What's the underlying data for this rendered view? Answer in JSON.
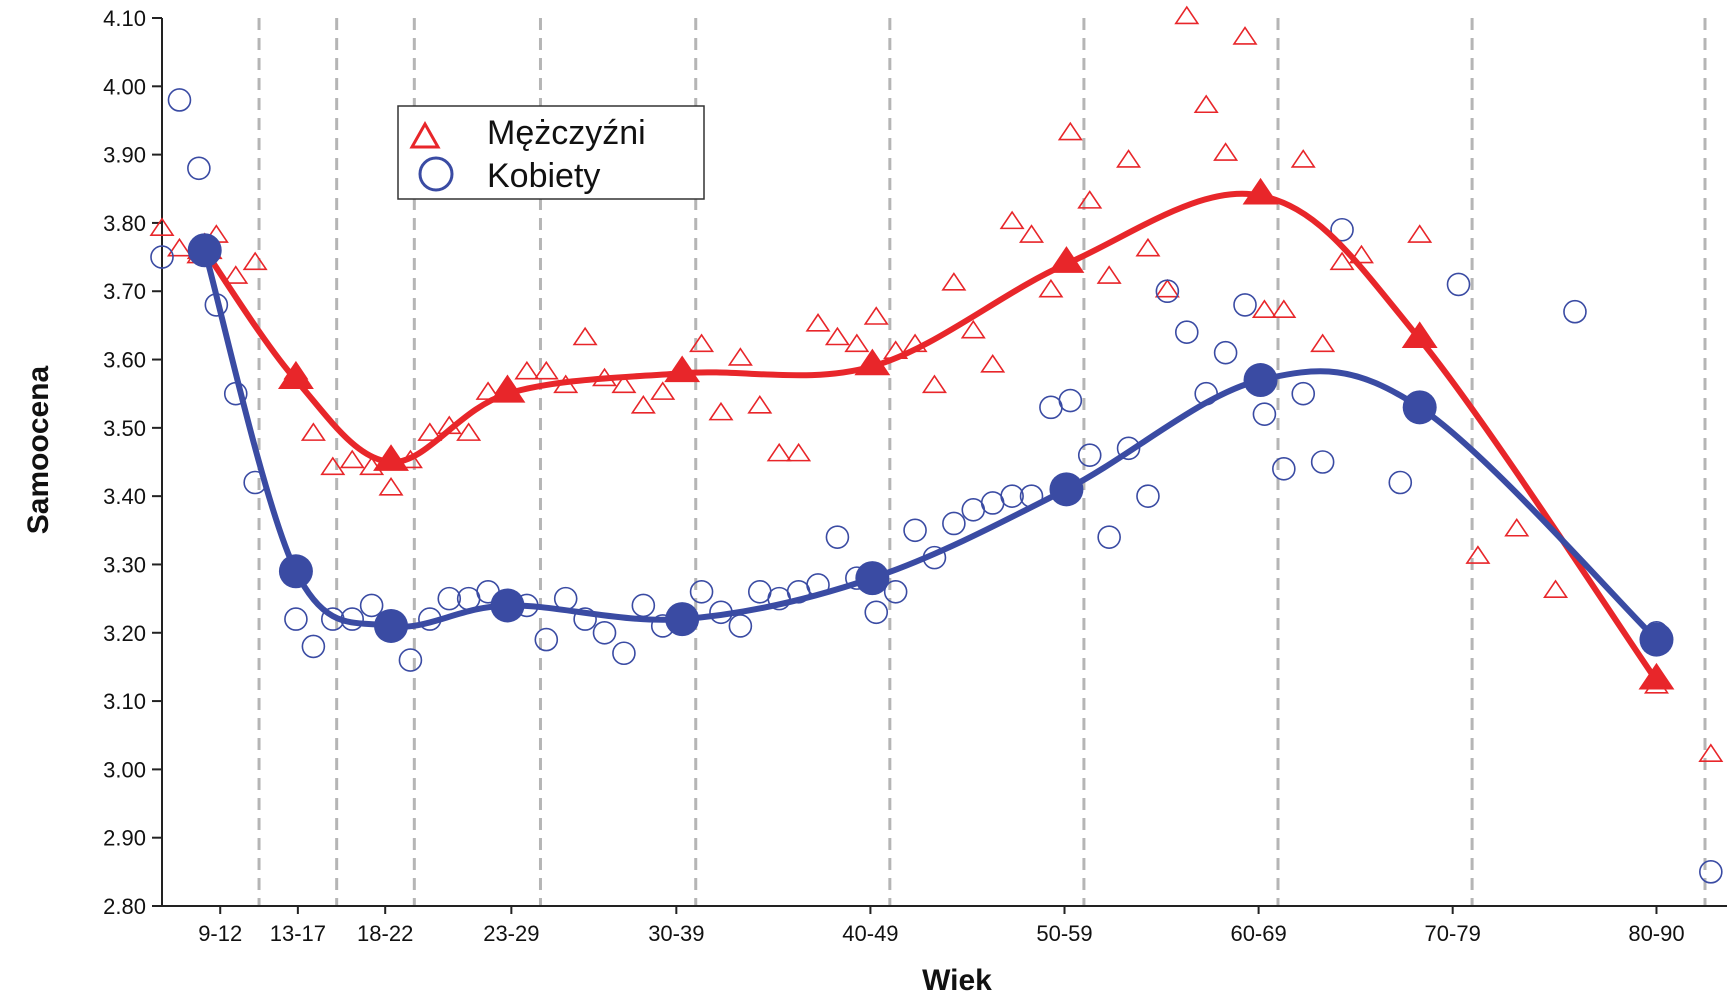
{
  "chart_data": {
    "type": "scatter",
    "xlabel": "Wiek",
    "ylabel": "Samoocena",
    "ylim": [
      2.8,
      4.1
    ],
    "yticks": [
      "2.80",
      "2.90",
      "3.00",
      "3.10",
      "3.20",
      "3.30",
      "3.40",
      "3.50",
      "3.60",
      "3.70",
      "3.80",
      "3.90",
      "4.00",
      "4.10"
    ],
    "grid": "vertical dashed separators between age groups",
    "legend_position": "top-left",
    "categories": [
      "9-12",
      "13-17",
      "18-22",
      "23-29",
      "30-39",
      "40-49",
      "50-59",
      "60-69",
      "70-79",
      "80-90"
    ],
    "category_positions": [
      11,
      15,
      19.5,
      26,
      34.5,
      44.5,
      54.5,
      64.5,
      74.5,
      85
    ],
    "separators": [
      13,
      17,
      21,
      27.5,
      35.5,
      45.5,
      55.5,
      65.5,
      75.5,
      87.5
    ],
    "x_domain": [
      8,
      87.5
    ],
    "series": [
      {
        "name": "Mężczyźni",
        "marker": "triangle",
        "color": "#e8262a",
        "points": [
          [
            8.0,
            3.79
          ],
          [
            8.9,
            3.76
          ],
          [
            9.9,
            3.75
          ],
          [
            10.8,
            3.78
          ],
          [
            11.8,
            3.72
          ],
          [
            12.8,
            3.74
          ],
          [
            14.9,
            3.58
          ],
          [
            15.8,
            3.49
          ],
          [
            16.8,
            3.44
          ],
          [
            17.8,
            3.45
          ],
          [
            18.8,
            3.44
          ],
          [
            19.8,
            3.41
          ],
          [
            20.8,
            3.45
          ],
          [
            21.8,
            3.49
          ],
          [
            22.8,
            3.5
          ],
          [
            23.8,
            3.49
          ],
          [
            24.8,
            3.55
          ],
          [
            25.8,
            3.56
          ],
          [
            26.8,
            3.58
          ],
          [
            27.8,
            3.58
          ],
          [
            28.8,
            3.56
          ],
          [
            29.8,
            3.63
          ],
          [
            30.8,
            3.57
          ],
          [
            31.8,
            3.56
          ],
          [
            32.8,
            3.53
          ],
          [
            33.8,
            3.55
          ],
          [
            35.8,
            3.62
          ],
          [
            36.8,
            3.52
          ],
          [
            37.8,
            3.6
          ],
          [
            38.8,
            3.53
          ],
          [
            39.8,
            3.46
          ],
          [
            40.8,
            3.46
          ],
          [
            41.8,
            3.65
          ],
          [
            42.8,
            3.63
          ],
          [
            43.8,
            3.62
          ],
          [
            44.8,
            3.66
          ],
          [
            45.8,
            3.61
          ],
          [
            46.8,
            3.62
          ],
          [
            47.8,
            3.56
          ],
          [
            48.8,
            3.71
          ],
          [
            49.8,
            3.64
          ],
          [
            50.8,
            3.59
          ],
          [
            51.8,
            3.8
          ],
          [
            52.8,
            3.78
          ],
          [
            53.8,
            3.7
          ],
          [
            54.8,
            3.93
          ],
          [
            55.8,
            3.83
          ],
          [
            56.8,
            3.72
          ],
          [
            57.8,
            3.89
          ],
          [
            58.8,
            3.76
          ],
          [
            59.8,
            3.7
          ],
          [
            60.8,
            4.1
          ],
          [
            61.8,
            3.97
          ],
          [
            62.8,
            3.9
          ],
          [
            63.8,
            4.07
          ],
          [
            64.8,
            3.67
          ],
          [
            65.8,
            3.67
          ],
          [
            66.8,
            3.89
          ],
          [
            67.8,
            3.62
          ],
          [
            68.8,
            3.74
          ],
          [
            69.8,
            3.75
          ],
          [
            72.8,
            3.78
          ],
          [
            75.8,
            3.31
          ],
          [
            77.8,
            3.35
          ],
          [
            79.8,
            3.26
          ],
          [
            85.0,
            3.12
          ],
          [
            87.8,
            3.02
          ]
        ],
        "means": [
          [
            10.2,
            3.76
          ],
          [
            14.9,
            3.57
          ],
          [
            19.8,
            3.45
          ],
          [
            25.8,
            3.55
          ],
          [
            34.8,
            3.58
          ],
          [
            44.6,
            3.59
          ],
          [
            54.6,
            3.74
          ],
          [
            64.6,
            3.84
          ],
          [
            72.8,
            3.63
          ],
          [
            85.0,
            3.13
          ]
        ]
      },
      {
        "name": "Kobiety",
        "marker": "circle",
        "color": "#3a4ba3",
        "points": [
          [
            8.0,
            3.75
          ],
          [
            8.9,
            3.98
          ],
          [
            9.9,
            3.88
          ],
          [
            10.8,
            3.68
          ],
          [
            11.8,
            3.55
          ],
          [
            12.8,
            3.42
          ],
          [
            14.9,
            3.22
          ],
          [
            15.8,
            3.18
          ],
          [
            16.8,
            3.22
          ],
          [
            17.8,
            3.22
          ],
          [
            18.8,
            3.24
          ],
          [
            19.8,
            3.21
          ],
          [
            20.8,
            3.16
          ],
          [
            21.8,
            3.22
          ],
          [
            22.8,
            3.25
          ],
          [
            23.8,
            3.25
          ],
          [
            24.8,
            3.26
          ],
          [
            25.8,
            3.24
          ],
          [
            26.8,
            3.24
          ],
          [
            27.8,
            3.19
          ],
          [
            28.8,
            3.25
          ],
          [
            29.8,
            3.22
          ],
          [
            30.8,
            3.2
          ],
          [
            31.8,
            3.17
          ],
          [
            32.8,
            3.24
          ],
          [
            33.8,
            3.21
          ],
          [
            35.8,
            3.26
          ],
          [
            36.8,
            3.23
          ],
          [
            37.8,
            3.21
          ],
          [
            38.8,
            3.26
          ],
          [
            39.8,
            3.25
          ],
          [
            40.8,
            3.26
          ],
          [
            41.8,
            3.27
          ],
          [
            42.8,
            3.34
          ],
          [
            43.8,
            3.28
          ],
          [
            44.8,
            3.23
          ],
          [
            45.8,
            3.26
          ],
          [
            46.8,
            3.35
          ],
          [
            47.8,
            3.31
          ],
          [
            48.8,
            3.36
          ],
          [
            49.8,
            3.38
          ],
          [
            50.8,
            3.39
          ],
          [
            51.8,
            3.4
          ],
          [
            52.8,
            3.4
          ],
          [
            53.8,
            3.53
          ],
          [
            54.8,
            3.54
          ],
          [
            55.8,
            3.46
          ],
          [
            56.8,
            3.34
          ],
          [
            57.8,
            3.47
          ],
          [
            58.8,
            3.4
          ],
          [
            59.8,
            3.7
          ],
          [
            60.8,
            3.64
          ],
          [
            61.8,
            3.55
          ],
          [
            62.8,
            3.61
          ],
          [
            63.8,
            3.68
          ],
          [
            64.8,
            3.52
          ],
          [
            65.8,
            3.44
          ],
          [
            66.8,
            3.55
          ],
          [
            67.8,
            3.45
          ],
          [
            68.8,
            3.79
          ],
          [
            71.8,
            3.42
          ],
          [
            74.8,
            3.71
          ],
          [
            80.8,
            3.67
          ],
          [
            85.0,
            3.2
          ],
          [
            87.8,
            2.85
          ]
        ],
        "means": [
          [
            10.2,
            3.76
          ],
          [
            14.9,
            3.29
          ],
          [
            19.8,
            3.21
          ],
          [
            25.8,
            3.24
          ],
          [
            34.8,
            3.22
          ],
          [
            44.6,
            3.28
          ],
          [
            54.6,
            3.41
          ],
          [
            64.6,
            3.57
          ],
          [
            72.8,
            3.53
          ],
          [
            85.0,
            3.19
          ]
        ]
      }
    ]
  }
}
